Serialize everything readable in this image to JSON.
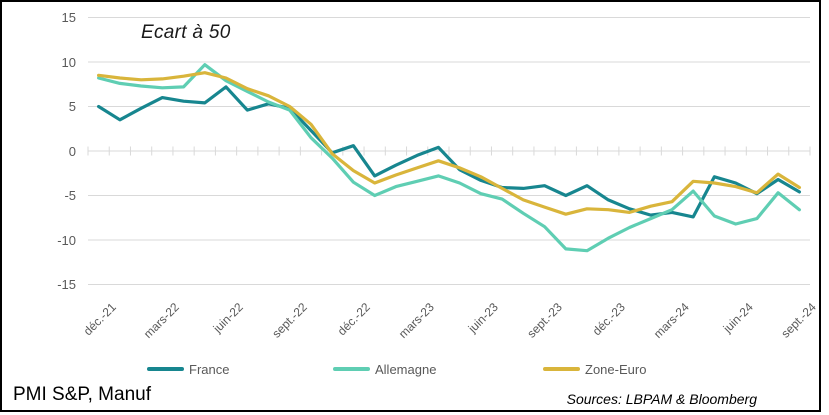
{
  "chart_data": {
    "type": "line",
    "title": "Ecart à 50",
    "x_labels": [
      "déc.-21",
      "janv.-22",
      "févr.-22",
      "mars-22",
      "avr.-22",
      "mai-22",
      "juin-22",
      "juil.-22",
      "août-22",
      "sept.-22",
      "oct.-22",
      "nov.-22",
      "déc.-22",
      "janv.-23",
      "févr.-23",
      "mars-23",
      "avr.-23",
      "mai-23",
      "juin-23",
      "juil.-23",
      "août-23",
      "sept.-23",
      "oct.-23",
      "nov.-23",
      "déc.-23",
      "janv.-24",
      "févr.-24",
      "mars-24",
      "avr.-24",
      "mai-24",
      "juin-24",
      "juil.-24",
      "août-24",
      "sept.-24"
    ],
    "x_tick_labels_shown": [
      "déc.-21",
      "mars-22",
      "juin-22",
      "sept.-22",
      "déc.-22",
      "mars-23",
      "juin-23",
      "sept.-23",
      "déc.-23",
      "mars-24",
      "juin-24",
      "sept.-24"
    ],
    "label_every": 3,
    "y_ticks": [
      15,
      10,
      5,
      0,
      -5,
      -10,
      -15
    ],
    "ylim": [
      -15,
      15
    ],
    "grid": "horizontal-only",
    "legend_position": "bottom",
    "series": [
      {
        "name": "France",
        "color": "#17868F",
        "values": [
          5.0,
          3.5,
          4.8,
          6.0,
          5.6,
          5.4,
          7.2,
          4.6,
          5.3,
          4.8,
          2.3,
          -0.2,
          0.6,
          -2.8,
          -1.6,
          -0.5,
          0.4,
          -2.1,
          -3.3,
          -4.1,
          -4.2,
          -3.9,
          -5.0,
          -3.9,
          -5.5,
          -6.5,
          -7.2,
          -6.9,
          -7.4,
          -2.9,
          -3.6,
          -4.8,
          -3.2,
          -4.6
        ]
      },
      {
        "name": "Allemagne",
        "color": "#5FCEB3",
        "values": [
          8.2,
          7.6,
          7.3,
          7.1,
          7.2,
          9.7,
          7.9,
          6.7,
          5.5,
          4.6,
          1.5,
          -0.8,
          -3.5,
          -5.0,
          -4.0,
          -3.4,
          -2.8,
          -3.6,
          -4.8,
          -5.4,
          -7.0,
          -8.5,
          -11.0,
          -11.2,
          -9.8,
          -8.6,
          -7.6,
          -6.6,
          -4.5,
          -7.3,
          -8.2,
          -7.6,
          -4.7,
          -6.6
        ]
      },
      {
        "name": "Zone-Euro",
        "color": "#D9B53B",
        "values": [
          8.5,
          8.2,
          8.0,
          8.1,
          8.4,
          8.8,
          8.2,
          7.0,
          6.2,
          5.0,
          3.0,
          -0.3,
          -2.2,
          -3.6,
          -2.7,
          -1.9,
          -1.1,
          -1.9,
          -2.9,
          -4.2,
          -5.5,
          -6.3,
          -7.1,
          -6.5,
          -6.6,
          -6.9,
          -6.2,
          -5.7,
          -3.4,
          -3.6,
          -4.0,
          -4.7,
          -2.6,
          -4.1
        ]
      }
    ]
  },
  "footer": {
    "left": "PMI S&P, Manuf",
    "right": "Sources: LBPAM & Bloomberg"
  },
  "colors": {
    "grid": "#D9D9D9",
    "axis_text": "#595959",
    "frame": "#000000",
    "background": "#FFFFFF"
  }
}
